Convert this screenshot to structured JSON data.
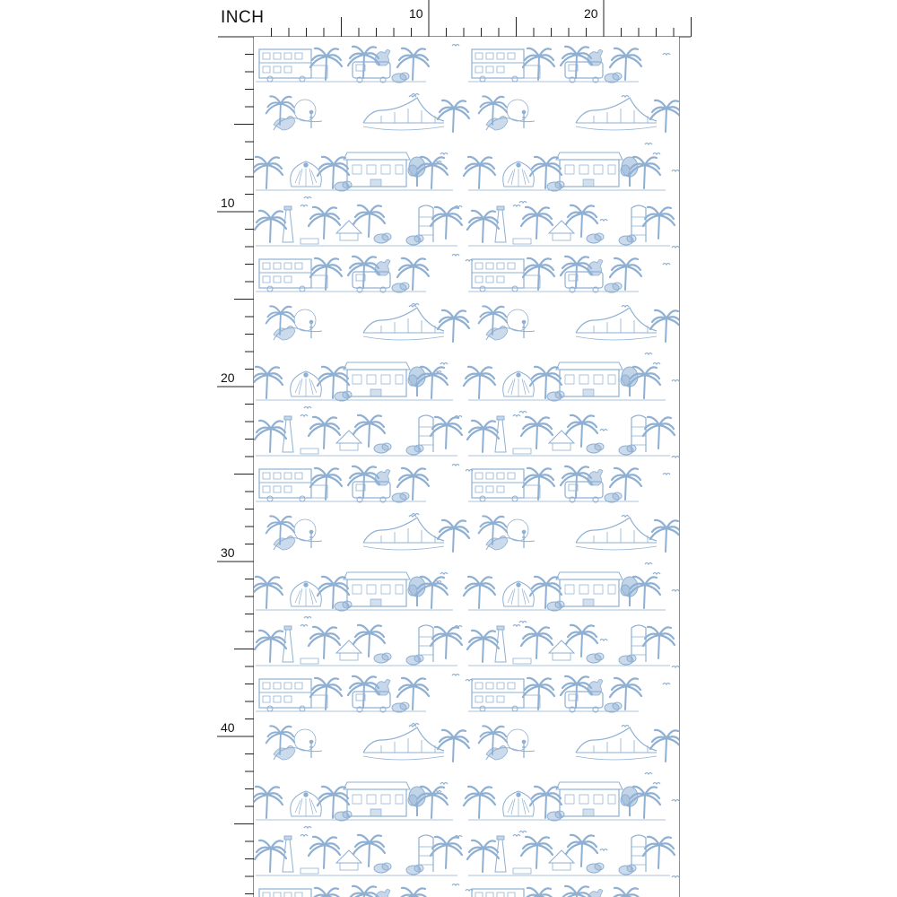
{
  "ruler": {
    "unit": "INCH",
    "top_labels": [
      {
        "value": 10,
        "text": "10"
      },
      {
        "value": 20,
        "text": "20"
      }
    ],
    "left_labels": [
      {
        "value": 10,
        "text": "10"
      },
      {
        "value": 20,
        "text": "20"
      },
      {
        "value": 30,
        "text": "30"
      },
      {
        "value": 40,
        "text": "40"
      }
    ]
  },
  "fabric": {
    "pattern_name": "toile-de-jouy-tropical",
    "ink_color": "#8fb0d3",
    "background_color": "#ffffff",
    "motif_rows": [
      "double-decker-bus-palms-rooster-food-truck",
      "sunset-couple-bridge-palms",
      "peacock-palms-storefront-tree",
      "lighthouse-palms-gazebo-silo"
    ]
  }
}
